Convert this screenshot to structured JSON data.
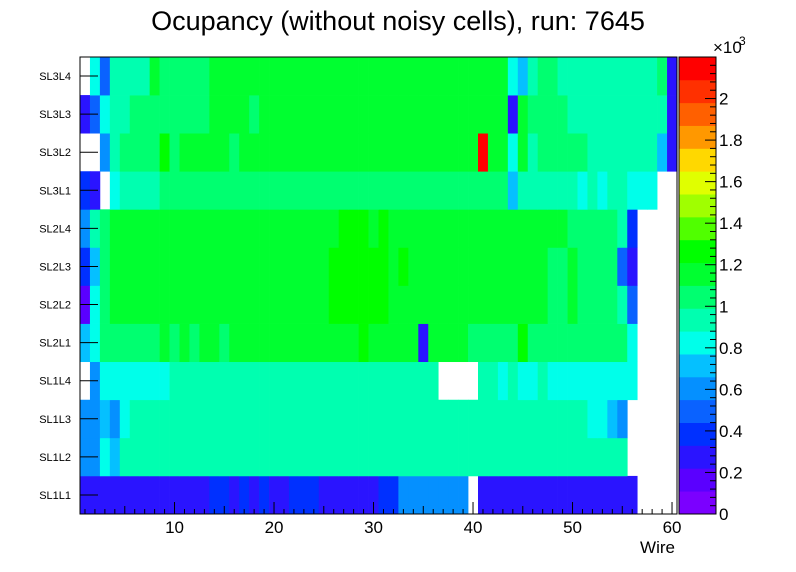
{
  "chart_data": {
    "type": "heatmap",
    "title": "Ocupancy (without noisy cells), run: 7645",
    "xlabel": "Wire",
    "xlim": [
      0.5,
      60.5
    ],
    "xticks": [
      "10",
      "20",
      "30",
      "40",
      "50",
      "60"
    ],
    "xtick_values": [
      10,
      20,
      30,
      40,
      50,
      60
    ],
    "rows": [
      "SL1L1",
      "SL1L2",
      "SL1L3",
      "SL1L4",
      "SL2L1",
      "SL2L2",
      "SL2L3",
      "SL2L4",
      "SL3L1",
      "SL3L2",
      "SL3L3",
      "SL3L4"
    ],
    "colorbar": {
      "min": 0,
      "max": 2200,
      "multiplier": "×10",
      "exponent": "3",
      "tick_values": [
        0,
        200,
        400,
        600,
        800,
        1000,
        1200,
        1400,
        1600,
        1800,
        2000
      ],
      "tick_labels": [
        "0",
        "0.2",
        "0.4",
        "0.6",
        "0.8",
        "1",
        "1.2",
        "1.4",
        "1.6",
        "1.8",
        "2"
      ],
      "palette": [
        "#7b00ff",
        "#5a00ff",
        "#2a14ff",
        "#0030ff",
        "#0a62ff",
        "#0590ff",
        "#05c0ff",
        "#00ffea",
        "#00ffb0",
        "#00ff70",
        "#00ff30",
        "#00ff00",
        "#50ff00",
        "#a0ff00",
        "#e0ff00",
        "#ffd800",
        "#ff9800",
        "#ff6000",
        "#ff3000",
        "#ff0000"
      ]
    },
    "series": [
      {
        "name": "SL1L1",
        "values": [
          250,
          250,
          260,
          270,
          250,
          310,
          290,
          300,
          280,
          300,
          300,
          300,
          220,
          330,
          330,
          320,
          330,
          310,
          330,
          320,
          320,
          330,
          330,
          330,
          290,
          320,
          290,
          320,
          320,
          280,
          340,
          330,
          640,
          650,
          640,
          650,
          640,
          650,
          640,
          0,
          250,
          260,
          260,
          260,
          260,
          260,
          260,
          260,
          260,
          260,
          260,
          260,
          260,
          260,
          260,
          260,
          0,
          0,
          0,
          0
        ]
      },
      {
        "name": "SL1L2",
        "values": [
          600,
          580,
          800,
          700,
          880,
          880,
          900,
          900,
          900,
          900,
          900,
          900,
          900,
          900,
          900,
          900,
          900,
          900,
          900,
          900,
          920,
          900,
          900,
          880,
          900,
          880,
          880,
          900,
          900,
          900,
          900,
          900,
          900,
          900,
          900,
          900,
          900,
          900,
          900,
          900,
          900,
          880,
          900,
          900,
          880,
          900,
          900,
          900,
          900,
          900,
          880,
          880,
          900,
          880,
          880,
          0,
          0,
          0,
          0,
          0
        ]
      },
      {
        "name": "SL1L3",
        "values": [
          600,
          600,
          750,
          600,
          780,
          900,
          880,
          900,
          900,
          900,
          900,
          900,
          900,
          920,
          920,
          900,
          900,
          900,
          920,
          920,
          940,
          900,
          920,
          920,
          900,
          900,
          920,
          920,
          920,
          920,
          920,
          920,
          920,
          900,
          940,
          920,
          900,
          920,
          920,
          900,
          880,
          900,
          900,
          900,
          900,
          900,
          900,
          900,
          880,
          880,
          880,
          860,
          860,
          750,
          650,
          0,
          0,
          0,
          0,
          0
        ]
      },
      {
        "name": "SL1L4",
        "values": [
          0,
          640,
          780,
          800,
          820,
          820,
          820,
          820,
          820,
          900,
          900,
          900,
          900,
          900,
          900,
          880,
          880,
          880,
          900,
          900,
          900,
          900,
          900,
          900,
          920,
          900,
          920,
          900,
          920,
          920,
          940,
          920,
          950,
          940,
          920,
          900,
          0,
          0,
          0,
          0,
          900,
          880,
          820,
          880,
          820,
          860,
          880,
          860,
          850,
          860,
          840,
          820,
          820,
          820,
          820,
          820,
          0,
          0,
          0,
          0
        ]
      },
      {
        "name": "SL2L1",
        "values": [
          700,
          820,
          1020,
          1050,
          1060,
          1050,
          1080,
          1080,
          1100,
          1080,
          1100,
          1080,
          1100,
          1100,
          1080,
          1110,
          1120,
          1120,
          1100,
          1100,
          1130,
          1120,
          1130,
          1130,
          1150,
          1160,
          1160,
          1180,
          1300,
          1200,
          1180,
          1160,
          1140,
          1100,
          250,
          1100,
          1120,
          1100,
          1100,
          1080,
          1080,
          1060,
          1060,
          1080,
          1300,
          1060,
          1080,
          1080,
          1040,
          1080,
          1060,
          1050,
          1060,
          1040,
          1000,
          840,
          0,
          0,
          0,
          0
        ]
      },
      {
        "name": "SL2L2",
        "values": [
          200,
          780,
          1020,
          1150,
          1100,
          1120,
          1150,
          1120,
          1150,
          1160,
          1160,
          1160,
          1180,
          1180,
          1180,
          1170,
          1180,
          1170,
          1180,
          1180,
          1190,
          1200,
          1200,
          1190,
          1200,
          1220,
          1220,
          1250,
          1220,
          1220,
          1210,
          1200,
          1200,
          1180,
          1160,
          1160,
          1150,
          1150,
          1150,
          1150,
          1140,
          1130,
          1130,
          1120,
          1130,
          1100,
          1120,
          1080,
          1090,
          1100,
          1080,
          1080,
          1080,
          1050,
          900,
          500,
          0,
          0,
          0,
          0
        ]
      },
      {
        "name": "SL2L3",
        "values": [
          400,
          760,
          1060,
          1150,
          1100,
          1120,
          1160,
          1120,
          1160,
          1160,
          1160,
          1160,
          1200,
          1180,
          1180,
          1180,
          1200,
          1170,
          1180,
          1180,
          1190,
          1190,
          1200,
          1190,
          1200,
          1210,
          1260,
          1300,
          1230,
          1230,
          1210,
          1200,
          1210,
          1190,
          1180,
          1170,
          1160,
          1150,
          1160,
          1160,
          1140,
          1140,
          1130,
          1130,
          1130,
          1110,
          1110,
          1090,
          1090,
          1100,
          1080,
          1080,
          1080,
          1060,
          500,
          300,
          0,
          0,
          0,
          0
        ]
      },
      {
        "name": "SL2L4",
        "values": [
          600,
          880,
          1000,
          1110,
          1100,
          1110,
          1140,
          1140,
          1140,
          1150,
          1150,
          1150,
          1180,
          1180,
          1170,
          1180,
          1180,
          1190,
          1180,
          1180,
          1200,
          1200,
          1200,
          1200,
          1200,
          1200,
          1210,
          1220,
          1250,
          1200,
          1210,
          1200,
          1190,
          1180,
          1180,
          1160,
          1160,
          1150,
          1160,
          1150,
          1140,
          1130,
          1130,
          1120,
          1120,
          1120,
          1100,
          1100,
          1100,
          1090,
          1080,
          1080,
          1080,
          1080,
          900,
          400,
          0,
          0,
          0,
          0
        ]
      },
      {
        "name": "SL3L1",
        "values": [
          400,
          300,
          0,
          820,
          880,
          920,
          960,
          980,
          990,
          1000,
          1020,
          1020,
          1040,
          1040,
          1060,
          1060,
          1060,
          1070,
          1060,
          1060,
          1080,
          1080,
          1080,
          1070,
          1060,
          1080,
          1080,
          1080,
          1090,
          1090,
          1090,
          1080,
          1080,
          1080,
          1080,
          1070,
          1060,
          1060,
          1060,
          1060,
          1040,
          1040,
          1040,
          700,
          950,
          940,
          920,
          920,
          900,
          900,
          860,
          880,
          860,
          880,
          880,
          850,
          820,
          820,
          0,
          0
        ]
      },
      {
        "name": "SL3L2",
        "values": [
          0,
          0,
          550,
          980,
          1000,
          1050,
          1040,
          1080,
          1300,
          1050,
          1120,
          1120,
          1120,
          1130,
          1130,
          1090,
          1120,
          1120,
          1150,
          1150,
          1150,
          1150,
          1150,
          1150,
          1130,
          1120,
          1150,
          1180,
          1200,
          1150,
          1150,
          1160,
          1160,
          1150,
          1160,
          1150,
          1140,
          1160,
          1160,
          1160,
          2100,
          1120,
          1100,
          800,
          1100,
          900,
          1050,
          1050,
          1000,
          1000,
          1000,
          950,
          950,
          950,
          900,
          900,
          900,
          880,
          700,
          300
        ]
      },
      {
        "name": "SL3L3",
        "values": [
          300,
          500,
          820,
          950,
          980,
          1040,
          1060,
          1060,
          1080,
          1080,
          1080,
          1090,
          1090,
          1100,
          1100,
          1100,
          1100,
          1090,
          1100,
          1100,
          1110,
          1110,
          1110,
          1120,
          1120,
          1100,
          1110,
          1130,
          1120,
          1120,
          1110,
          1120,
          1120,
          1120,
          1120,
          1120,
          1120,
          1120,
          1120,
          1120,
          1100,
          1110,
          1100,
          300,
          1100,
          1000,
          1020,
          1010,
          1000,
          980,
          960,
          960,
          960,
          940,
          940,
          920,
          920,
          920,
          880,
          300
        ]
      },
      {
        "name": "SL3L4",
        "values": [
          0,
          800,
          500,
          900,
          920,
          960,
          980,
          1100,
          1050,
          1060,
          1060,
          1080,
          1080,
          1100,
          1100,
          1100,
          1100,
          1100,
          1100,
          1100,
          1100,
          1100,
          1100,
          1100,
          1100,
          1100,
          1100,
          1100,
          1110,
          1110,
          1120,
          1120,
          1120,
          1120,
          1120,
          1120,
          1100,
          1100,
          1100,
          1100,
          1100,
          1100,
          1100,
          800,
          750,
          950,
          1000,
          1000,
          980,
          980,
          940,
          940,
          930,
          930,
          920,
          920,
          920,
          900,
          1000,
          300
        ]
      }
    ]
  }
}
